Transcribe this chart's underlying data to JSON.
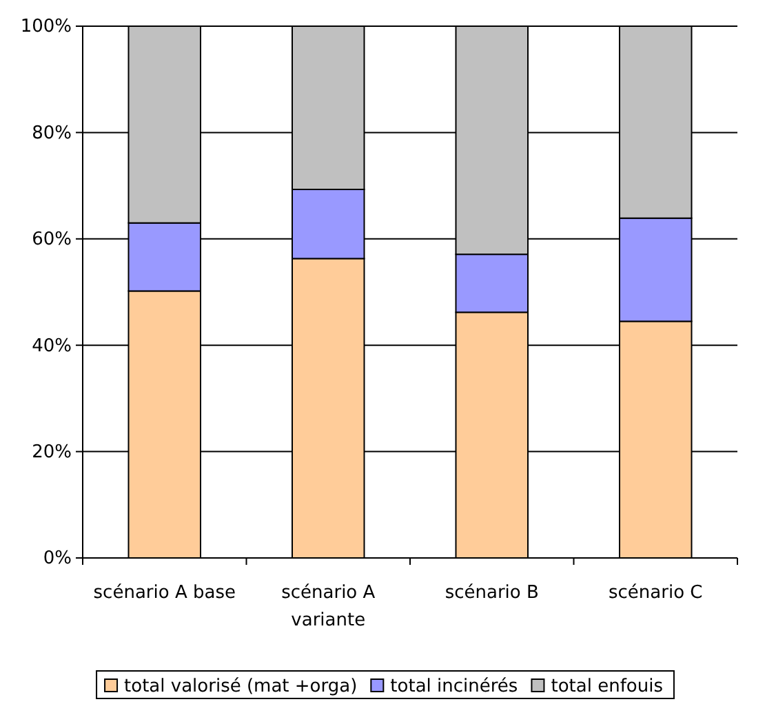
{
  "chart_data": {
    "type": "bar",
    "stacked": true,
    "categories": [
      "scénario A base",
      "scénario A variante",
      "scénario B",
      "scénario C"
    ],
    "series": [
      {
        "name": "total valorisé (mat +orga)",
        "color": "#ffcc99",
        "values": [
          50.2,
          56.3,
          46.2,
          44.5
        ]
      },
      {
        "name": "total incinérés",
        "color": "#9999ff",
        "values": [
          12.8,
          13.0,
          10.9,
          19.4
        ]
      },
      {
        "name": "total enfouis",
        "color": "#c0c0c0",
        "values": [
          37.0,
          30.7,
          42.9,
          36.1
        ]
      }
    ],
    "ylim": [
      0,
      100
    ],
    "yticks": [
      {
        "value": 0,
        "label": "0%"
      },
      {
        "value": 20,
        "label": "20%"
      },
      {
        "value": 40,
        "label": "40%"
      },
      {
        "value": 60,
        "label": "60%"
      },
      {
        "value": 80,
        "label": "80%"
      },
      {
        "value": 100,
        "label": "100%"
      }
    ],
    "grid": "y",
    "legend": "bottom"
  }
}
